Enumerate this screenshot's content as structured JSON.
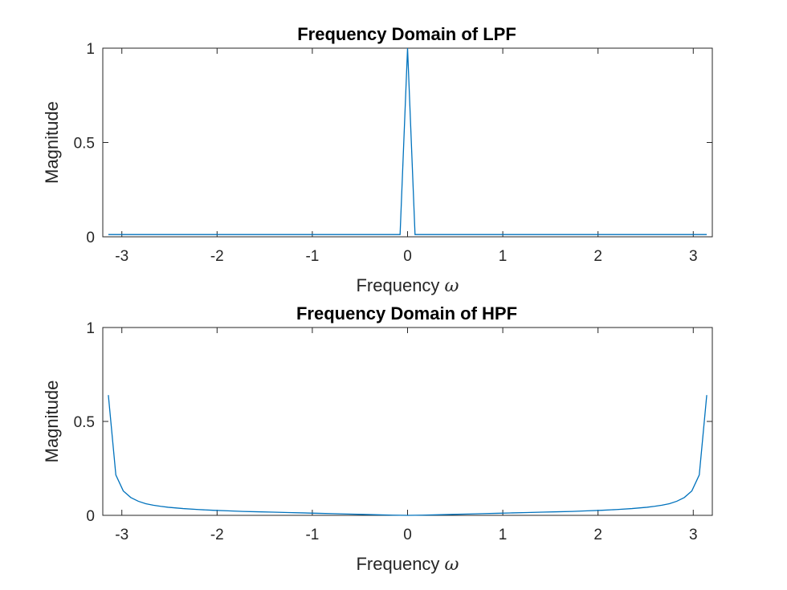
{
  "chart_data": [
    {
      "type": "line",
      "title": "Frequency Domain of LPF",
      "xlabel": "Frequency",
      "xlabel_symbol": "ω",
      "ylabel": "Magnitude",
      "xlim": [
        -3.2,
        3.2
      ],
      "ylim": [
        0,
        1
      ],
      "xticks": [
        -3,
        -2,
        -1,
        0,
        1,
        2,
        3
      ],
      "xtick_labels": [
        "-3",
        "-2",
        "-1",
        "0",
        "1",
        "2",
        "3"
      ],
      "yticks": [
        0,
        0.5,
        1
      ],
      "ytick_labels": [
        "0",
        "0.5",
        "1"
      ],
      "grid": false,
      "series": [
        {
          "color": "#0072BD",
          "x": [
            -3.1416,
            -0.0785,
            0,
            0.0785,
            3.1416
          ],
          "y": [
            0.012,
            0.012,
            1.0,
            0.012,
            0.012
          ]
        }
      ]
    },
    {
      "type": "line",
      "title": "Frequency Domain of HPF",
      "xlabel": "Frequency",
      "xlabel_symbol": "ω",
      "ylabel": "Magnitude",
      "xlim": [
        -3.2,
        3.2
      ],
      "ylim": [
        0,
        1
      ],
      "xticks": [
        -3,
        -2,
        -1,
        0,
        1,
        2,
        3
      ],
      "xtick_labels": [
        "-3",
        "-2",
        "-1",
        "0",
        "1",
        "2",
        "3"
      ],
      "yticks": [
        0,
        0.5,
        1
      ],
      "ytick_labels": [
        "0",
        "0.5",
        "1"
      ],
      "grid": false,
      "series": [
        {
          "color": "#0072BD",
          "x": [
            -3.1416,
            -3.063,
            -2.985,
            -2.906,
            -2.827,
            -2.749,
            -2.67,
            -2.592,
            -2.513,
            -2.356,
            -2.199,
            -2.042,
            -1.885,
            -1.728,
            -1.571,
            -1.414,
            -1.257,
            -1.1,
            -0.942,
            -0.785,
            -0.628,
            -0.471,
            -0.314,
            -0.157,
            0,
            0.157,
            0.314,
            0.471,
            0.628,
            0.785,
            0.942,
            1.1,
            1.257,
            1.414,
            1.571,
            1.728,
            1.885,
            2.042,
            2.199,
            2.356,
            2.513,
            2.592,
            2.67,
            2.749,
            2.827,
            2.906,
            2.985,
            3.063,
            3.1416
          ],
          "y": [
            0.64,
            0.215,
            0.13,
            0.095,
            0.075,
            0.062,
            0.054,
            0.048,
            0.043,
            0.036,
            0.031,
            0.027,
            0.024,
            0.021,
            0.019,
            0.017,
            0.015,
            0.013,
            0.011,
            0.009,
            0.007,
            0.005,
            0.003,
            0.001,
            0.0,
            0.001,
            0.003,
            0.005,
            0.007,
            0.009,
            0.011,
            0.013,
            0.015,
            0.017,
            0.019,
            0.021,
            0.024,
            0.027,
            0.031,
            0.036,
            0.043,
            0.048,
            0.054,
            0.062,
            0.075,
            0.095,
            0.13,
            0.215,
            0.64
          ]
        }
      ]
    }
  ]
}
